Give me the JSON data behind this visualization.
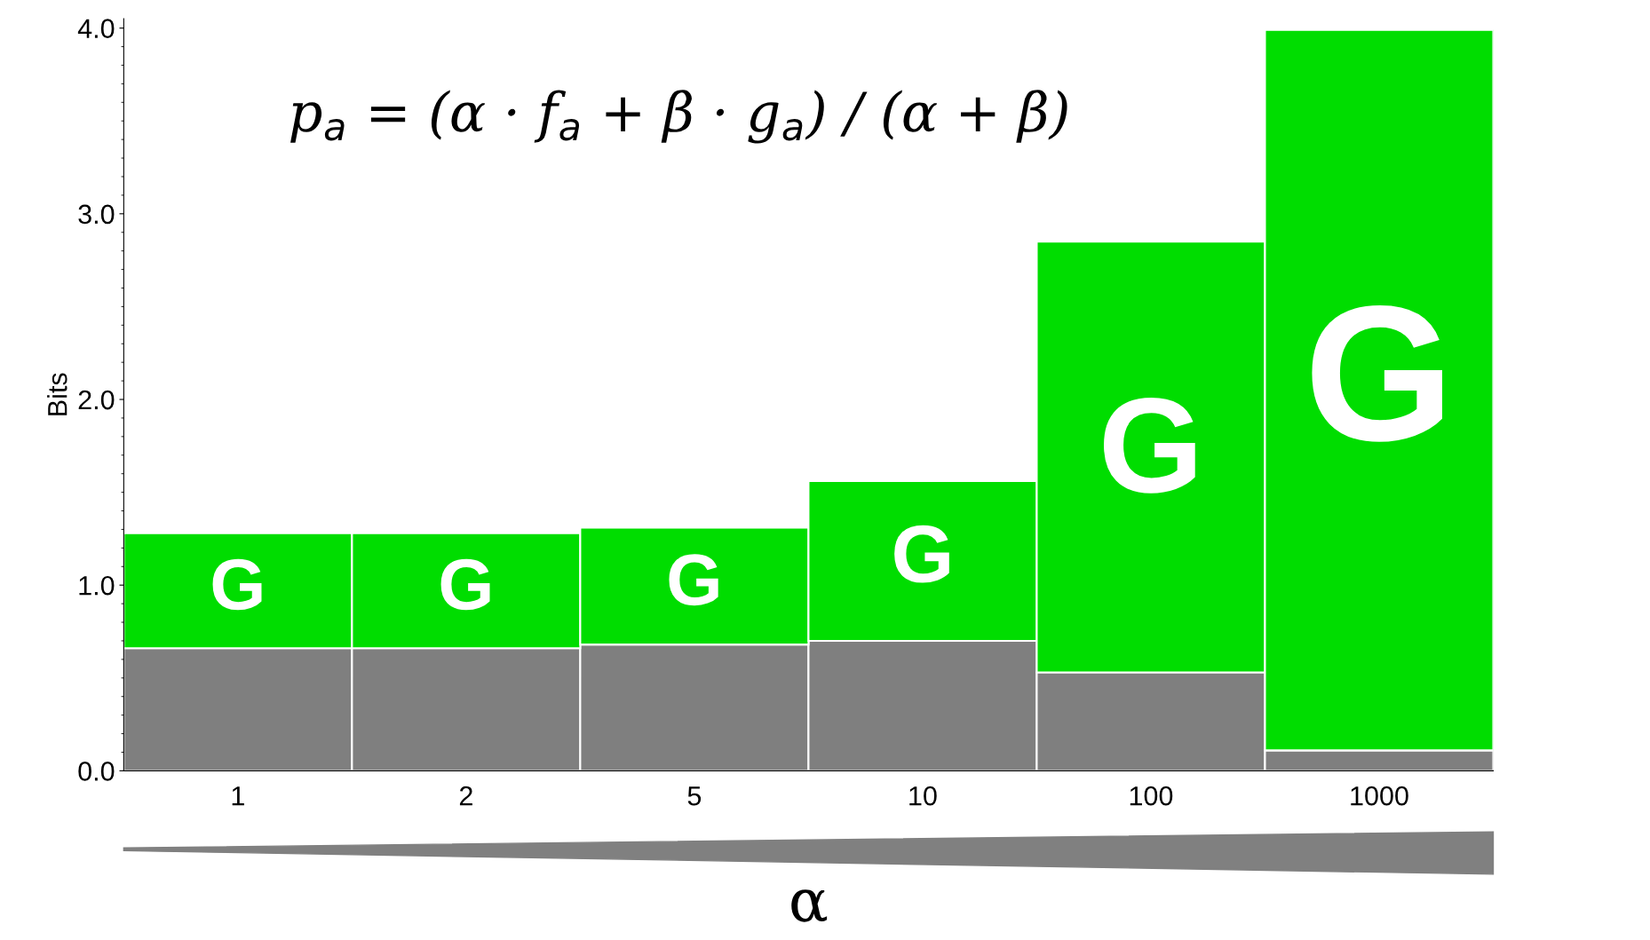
{
  "chart_data": {
    "type": "bar",
    "stacked": true,
    "ylabel": "Bits",
    "xlabel": "α",
    "categories": [
      "1",
      "2",
      "5",
      "10",
      "100",
      "1000"
    ],
    "series": [
      {
        "color": "#7f7f7f",
        "values": [
          0.66,
          0.66,
          0.68,
          0.7,
          0.53,
          0.11
        ]
      },
      {
        "name": "G",
        "color": "#00dd00",
        "values": [
          0.62,
          0.62,
          0.63,
          0.86,
          2.32,
          3.88
        ]
      }
    ],
    "ylim": [
      0,
      4.05
    ],
    "yticks": [
      {
        "value": 0,
        "label": "0.0"
      },
      {
        "value": 1,
        "label": "1.0"
      },
      {
        "value": 2,
        "label": "2.0"
      },
      {
        "value": 3,
        "label": "3.0"
      },
      {
        "value": 4,
        "label": "4.0"
      }
    ],
    "annotations": [
      "p$_{a}$ = (α · f$_{a}$ + β · g$_{a}$) / (α + β)"
    ],
    "grid": false,
    "legend": false
  }
}
